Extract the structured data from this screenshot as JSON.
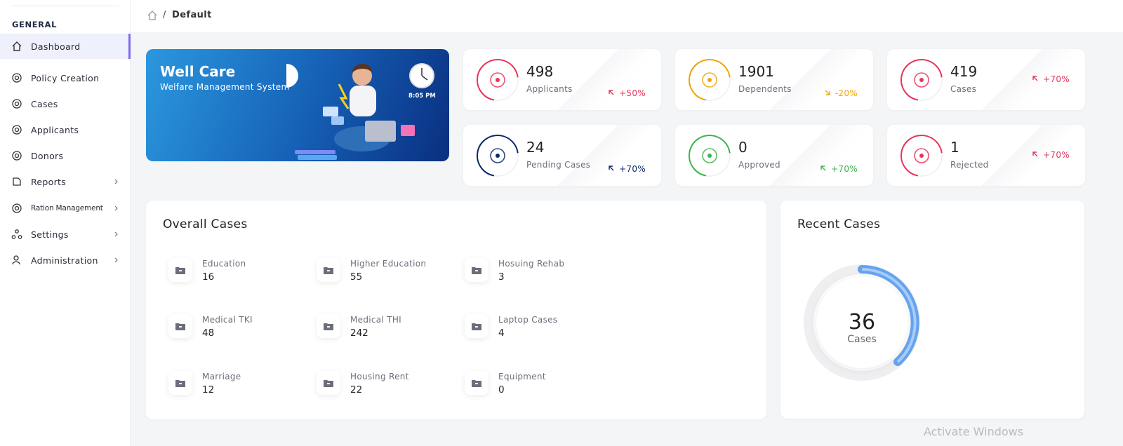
{
  "sidebar": {
    "section": "GENERAL",
    "items": [
      {
        "label": "Dashboard"
      },
      {
        "label": "Policy Creation"
      },
      {
        "label": "Cases"
      },
      {
        "label": "Applicants"
      },
      {
        "label": "Donors"
      },
      {
        "label": "Reports"
      },
      {
        "label": "Ration Management"
      },
      {
        "label": "Settings"
      },
      {
        "label": "Administration"
      }
    ]
  },
  "breadcrumb": {
    "separator": "/",
    "current": "Default"
  },
  "banner": {
    "title": "Well Care",
    "subtitle": "Welfare Management System",
    "time": "8:05 PM"
  },
  "stats": [
    {
      "value": "498",
      "label": "Applicants",
      "change": "+50%",
      "color": "#e8345b"
    },
    {
      "value": "1901",
      "label": "Dependents",
      "change": "-20%",
      "color": "#f0a500"
    },
    {
      "value": "419",
      "label": "Cases",
      "change": "+70%",
      "color": "#e8345b"
    },
    {
      "value": "24",
      "label": "Pending Cases",
      "change": "+70%",
      "color": "#0b2a6b"
    },
    {
      "value": "0",
      "label": "Approved",
      "change": "+70%",
      "color": "#3cb44b"
    },
    {
      "value": "1",
      "label": "Rejected",
      "change": "+70%",
      "color": "#e8345b"
    }
  ],
  "overall_cases": {
    "title": "Overall Cases",
    "items": [
      {
        "label": "Education",
        "value": "16"
      },
      {
        "label": "Higher Education",
        "value": "55"
      },
      {
        "label": "Hosuing Rehab",
        "value": "3"
      },
      {
        "label": "Medical TKI",
        "value": "48"
      },
      {
        "label": "Medical THI",
        "value": "242"
      },
      {
        "label": "Laptop Cases",
        "value": "4"
      },
      {
        "label": "Marriage",
        "value": "12"
      },
      {
        "label": "Housing Rent",
        "value": "22"
      },
      {
        "label": "Equipment",
        "value": "0"
      }
    ]
  },
  "recent_cases": {
    "title": "Recent Cases",
    "value": "36",
    "label": "Cases"
  },
  "watermark": "Activate Windows"
}
